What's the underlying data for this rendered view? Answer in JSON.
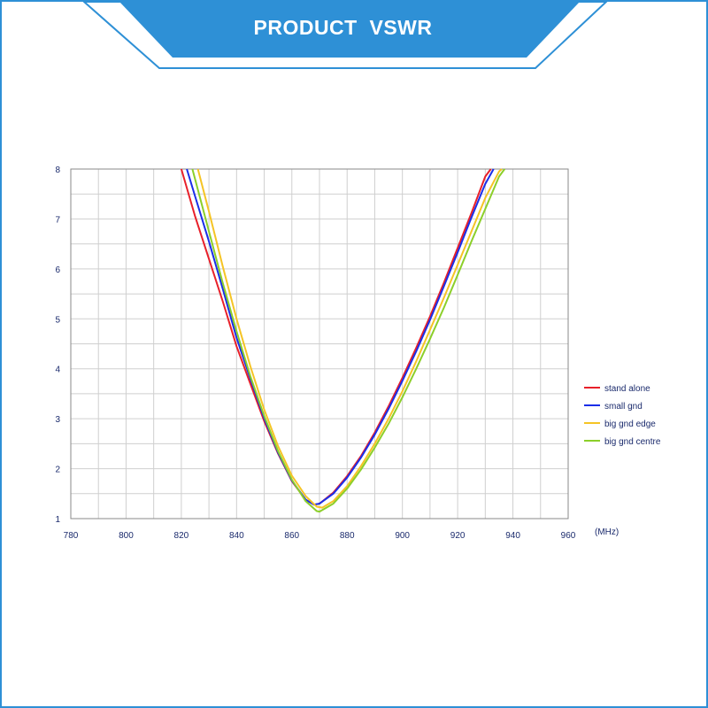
{
  "header": {
    "title": "PRODUCT  VSWR",
    "band_color": "#2e90d6"
  },
  "chart_data": {
    "type": "line",
    "title": "",
    "xlabel": "",
    "x_unit_label": "(MHz)",
    "ylabel": "",
    "xlim": [
      780,
      960
    ],
    "ylim": [
      1,
      8
    ],
    "x_ticks": [
      780,
      800,
      820,
      840,
      860,
      880,
      900,
      920,
      940,
      960
    ],
    "y_ticks": [
      1,
      2,
      3,
      4,
      5,
      6,
      7,
      8
    ],
    "grid": true,
    "legend_position": "right",
    "series": [
      {
        "name": "stand alone",
        "color": "#e8202a",
        "x": [
          820,
          825,
          830,
          835,
          840,
          845,
          850,
          855,
          860,
          865,
          868,
          870,
          875,
          880,
          885,
          890,
          895,
          900,
          905,
          910,
          915,
          920,
          925,
          930,
          932
        ],
        "y": [
          8.0,
          7.05,
          6.2,
          5.35,
          4.45,
          3.7,
          2.95,
          2.3,
          1.75,
          1.38,
          1.28,
          1.3,
          1.52,
          1.85,
          2.25,
          2.72,
          3.25,
          3.82,
          4.42,
          5.05,
          5.72,
          6.42,
          7.12,
          7.85,
          8.0
        ]
      },
      {
        "name": "small gnd",
        "color": "#1a2ee8",
        "x": [
          822,
          825,
          830,
          835,
          840,
          845,
          850,
          855,
          860,
          865,
          868,
          870,
          875,
          880,
          885,
          890,
          895,
          900,
          905,
          910,
          915,
          920,
          925,
          930,
          933
        ],
        "y": [
          8.0,
          7.45,
          6.55,
          5.6,
          4.62,
          3.8,
          3.0,
          2.32,
          1.76,
          1.38,
          1.28,
          1.3,
          1.5,
          1.82,
          2.22,
          2.68,
          3.2,
          3.76,
          4.35,
          4.98,
          5.65,
          6.33,
          7.03,
          7.7,
          8.0
        ]
      },
      {
        "name": "big gnd edge",
        "color": "#f5c425",
        "x": [
          826,
          830,
          835,
          840,
          845,
          850,
          855,
          860,
          865,
          869,
          871,
          875,
          880,
          885,
          890,
          895,
          900,
          905,
          910,
          915,
          920,
          925,
          930,
          935,
          936
        ],
        "y": [
          8.0,
          7.15,
          6.05,
          5.0,
          4.05,
          3.18,
          2.45,
          1.86,
          1.45,
          1.24,
          1.22,
          1.35,
          1.65,
          2.05,
          2.5,
          3.0,
          3.55,
          4.15,
          4.78,
          5.42,
          6.08,
          6.75,
          7.42,
          7.95,
          8.0
        ]
      },
      {
        "name": "big gnd centre",
        "color": "#8ccf2a",
        "x": [
          824,
          830,
          835,
          840,
          845,
          850,
          855,
          860,
          865,
          869,
          870,
          875,
          880,
          885,
          890,
          895,
          900,
          905,
          910,
          915,
          920,
          925,
          930,
          935,
          937
        ],
        "y": [
          8.0,
          6.75,
          5.72,
          4.75,
          3.85,
          3.05,
          2.35,
          1.78,
          1.35,
          1.15,
          1.14,
          1.3,
          1.6,
          1.98,
          2.42,
          2.9,
          3.43,
          4.0,
          4.6,
          5.22,
          5.88,
          6.55,
          7.2,
          7.85,
          8.0
        ]
      }
    ]
  }
}
